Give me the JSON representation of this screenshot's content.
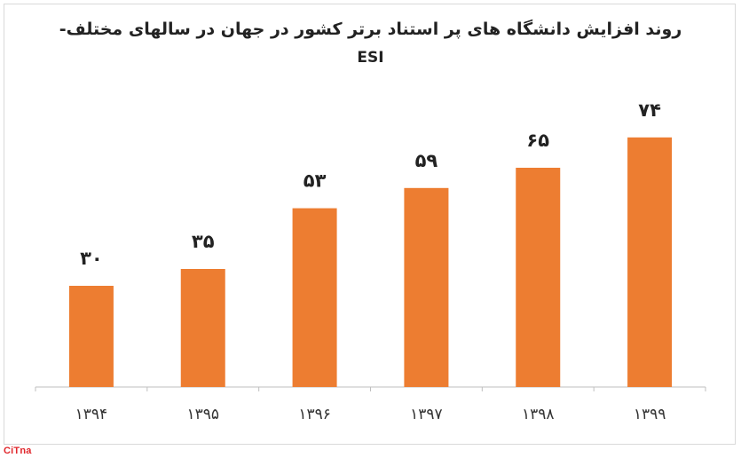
{
  "chart_data": {
    "type": "bar",
    "title": "روند افزایش دانشگاه های پر استناد برتر کشور در جهان در سالهای مختلف-",
    "subtitle": "ESI",
    "categories": [
      "۱۳۹۴",
      "۱۳۹۵",
      "۱۳۹۶",
      "۱۳۹۷",
      "۱۳۹۸",
      "۱۳۹۹"
    ],
    "values": [
      30,
      35,
      53,
      59,
      65,
      74
    ],
    "value_labels": [
      "۳۰",
      "۳۵",
      "۵۳",
      "۵۹",
      "۶۵",
      "۷۴"
    ],
    "ylim": [
      0,
      90
    ],
    "grid": false,
    "legend": "none",
    "bar_color": "#ed7d31",
    "xlabel": "",
    "ylabel": ""
  },
  "watermark": {
    "text": "CiTna",
    "color": "#e0262b"
  }
}
